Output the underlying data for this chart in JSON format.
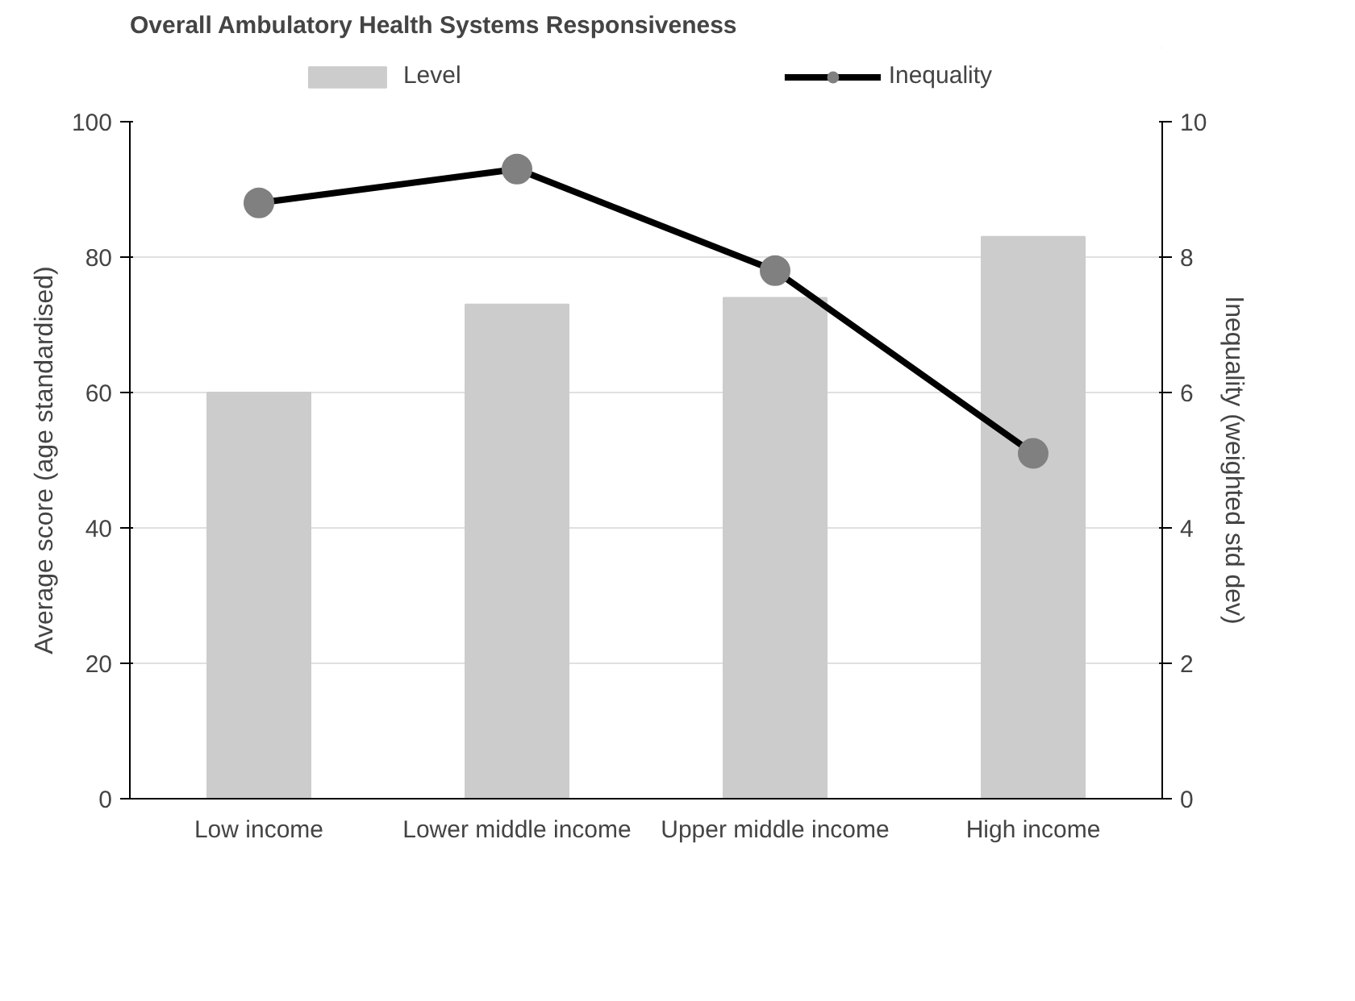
{
  "chart_data": {
    "type": "bar",
    "title": "Overall Ambulatory Health Systems Responsiveness",
    "ylabel": "Average score (age standardised)",
    "y2label": "Inequality (weighted std dev)",
    "categories": [
      "Low income",
      "Lower middle income",
      "Upper middle income",
      "High income"
    ],
    "series": [
      {
        "name": "Level",
        "color": "#cccccc",
        "values": [
          60,
          73,
          74,
          83
        ]
      },
      {
        "name": "Inequality",
        "type": "line",
        "axis": "y2",
        "color": "#000000",
        "values": [
          8.8,
          9.3,
          7.8,
          5.1
        ]
      }
    ],
    "marker": "circle",
    "ylim": [
      0,
      100
    ],
    "yticks": [
      0,
      20,
      40,
      60,
      80,
      100
    ],
    "y2lim": [
      0,
      10
    ],
    "y2ticks": [
      0,
      2,
      4,
      6,
      8,
      10
    ],
    "grid": "y",
    "legend": "top"
  }
}
